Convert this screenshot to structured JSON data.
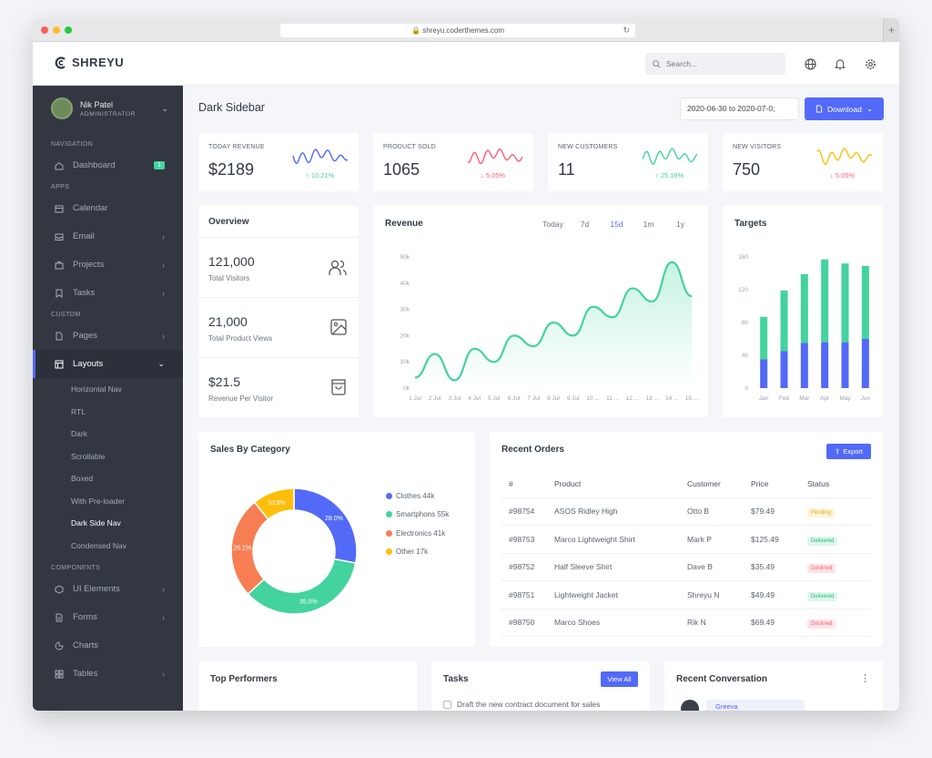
{
  "browser": {
    "url": "shreyu.coderthemes.com"
  },
  "brand": {
    "name": "SHREYU"
  },
  "search": {
    "placeholder": "Search..."
  },
  "user": {
    "name": "Nik Patel",
    "role": "ADMINISTRATOR"
  },
  "sidebar": {
    "sections": [
      "NAVIGATION",
      "APPS",
      "CUSTOM",
      "COMPONENTS"
    ],
    "dashboard": {
      "label": "Dashboard",
      "badge": "1"
    },
    "apps": [
      "Calendar",
      "Email",
      "Projects",
      "Tasks"
    ],
    "custom": [
      "Pages",
      "Layouts"
    ],
    "layouts_sub": [
      "Horizontal Nav",
      "RTL",
      "Dark",
      "Scrollable",
      "Boxed",
      "With Pre-loader",
      "Dark Side Nav",
      "Condensed Nav"
    ],
    "components": [
      "UI Elements",
      "Forms",
      "Charts",
      "Tables"
    ]
  },
  "page": {
    "title": "Dark Sidebar",
    "date_range": "2020-06-30 to 2020-07-0;",
    "download": "Download"
  },
  "stats": [
    {
      "label": "TODAY REVENUE",
      "value": "$2189",
      "change": "↑ 10.21%",
      "dir": "up",
      "color": "#5369f8"
    },
    {
      "label": "PRODUCT SOLD",
      "value": "1065",
      "change": "↓ 5.05%",
      "dir": "down",
      "color": "#ff5c75"
    },
    {
      "label": "NEW CUSTOMERS",
      "value": "11",
      "change": "↑ 25.16%",
      "dir": "up",
      "color": "#43d39e"
    },
    {
      "label": "NEW VISITORS",
      "value": "750",
      "change": "↓ 5.05%",
      "dir": "down",
      "color": "#ffbe0b"
    }
  ],
  "overview": {
    "title": "Overview",
    "rows": [
      {
        "value": "121,000",
        "label": "Total Visitors",
        "icon": "users-icon"
      },
      {
        "value": "21,000",
        "label": "Total Product Views",
        "icon": "image-icon"
      },
      {
        "value": "$21.5",
        "label": "Revenue Per Visitor",
        "icon": "shopping-bag-icon"
      }
    ]
  },
  "revenue": {
    "title": "Revenue",
    "tabs": [
      "Today",
      "7d",
      "15d",
      "1m",
      "1y"
    ],
    "active_tab": "15d"
  },
  "targets": {
    "title": "Targets"
  },
  "chart_data": [
    {
      "type": "area",
      "title": "Revenue",
      "categories": [
        "1 Jul",
        "2 Jul",
        "3 Jul",
        "4 Jul",
        "5 Jul",
        "6 Jul",
        "7 Jul",
        "8 Jul",
        "9 Jul",
        "10 ...",
        "11 ...",
        "12 ...",
        "13 ...",
        "14 ...",
        "15 ..."
      ],
      "yticks": [
        "0k",
        "10k",
        "20k",
        "30k",
        "40k",
        "50k"
      ],
      "ylim": [
        0,
        50
      ],
      "values": [
        4,
        13,
        3,
        15,
        10,
        20,
        16,
        25,
        20,
        31,
        27,
        38,
        33,
        48,
        35
      ],
      "color": "#43d39e"
    },
    {
      "type": "bar",
      "title": "Targets",
      "stacked": true,
      "categories": [
        "Jan",
        "Feb",
        "Mar",
        "Apr",
        "May",
        "Jun"
      ],
      "yticks": [
        "0",
        "40",
        "80",
        "120",
        "160"
      ],
      "ylim": [
        0,
        160
      ],
      "series": [
        {
          "values": [
            35,
            45,
            55,
            56,
            56,
            60
          ],
          "color": "#5369f8"
        },
        {
          "values": [
            52,
            74,
            84,
            101,
            96,
            89
          ],
          "color": "#43d39e"
        }
      ]
    },
    {
      "type": "pie",
      "title": "Sales By Category",
      "labels": [
        "Clothes 44k",
        "Smartphons 55k",
        "Electronics 41k",
        "Other 17k"
      ],
      "values": [
        44,
        55,
        41,
        17
      ],
      "percent_labels": [
        "28.0%",
        "35.0%",
        "26.1%",
        "10.8%"
      ],
      "colors": [
        "#5369f8",
        "#43d39e",
        "#f77e53",
        "#ffbe0b"
      ]
    }
  ],
  "sales": {
    "title": "Sales By Category"
  },
  "orders": {
    "title": "Recent Orders",
    "export": "Export",
    "columns": [
      "#",
      "Product",
      "Customer",
      "Price",
      "Status"
    ],
    "rows": [
      [
        "#98754",
        "ASOS Ridley High",
        "Otto B",
        "$79.49",
        "Pending"
      ],
      [
        "#98753",
        "Marco Lightweight Shirt",
        "Mark P",
        "$125.49",
        "Delivered"
      ],
      [
        "#98752",
        "Half Sleeve Shirt",
        "Dave B",
        "$35.49",
        "Declined"
      ],
      [
        "#98751",
        "Lightweight Jacket",
        "Shreyu N",
        "$49.49",
        "Delivered"
      ],
      [
        "#98750",
        "Marco Shoes",
        "Rik N",
        "$69.49",
        "Declined"
      ]
    ]
  },
  "bottom": {
    "performers": "Top Performers",
    "tasks": "Tasks",
    "view_all": "View All",
    "task1": "Draft the new contract document for sales",
    "conversation": "Recent Conversation",
    "conv_name": "Greeva"
  }
}
